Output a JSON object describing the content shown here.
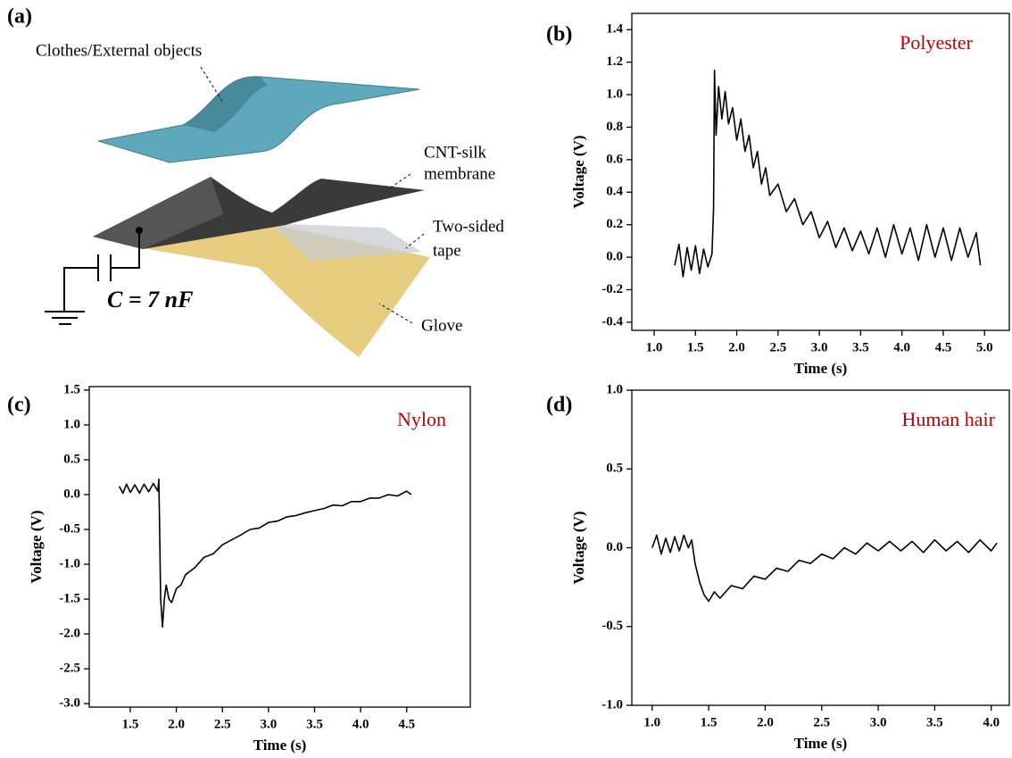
{
  "diagram": {
    "panel_label": "(a)",
    "labels": [
      "Clothes/External objects",
      "CNT-silk",
      "membrane",
      "Two-sided",
      "tape",
      "Glove",
      "C = 7 nF"
    ]
  },
  "chart_data": [
    {
      "type": "line",
      "panel_label": "(b)",
      "annotation": "Polyester",
      "xlabel": "Time (s)",
      "ylabel": "Voltage (V)",
      "color": "#000000",
      "x": [
        1.25,
        1.3,
        1.35,
        1.4,
        1.45,
        1.5,
        1.55,
        1.6,
        1.65,
        1.7,
        1.72,
        1.73,
        1.75,
        1.78,
        1.82,
        1.86,
        1.9,
        1.95,
        2.0,
        2.05,
        2.1,
        2.15,
        2.2,
        2.25,
        2.3,
        2.35,
        2.4,
        2.5,
        2.6,
        2.7,
        2.8,
        2.9,
        3.0,
        3.1,
        3.2,
        3.3,
        3.4,
        3.5,
        3.6,
        3.7,
        3.8,
        3.9,
        4.0,
        4.1,
        4.2,
        4.3,
        4.4,
        4.5,
        4.6,
        4.7,
        4.8,
        4.9,
        4.95
      ],
      "values": [
        -0.05,
        0.08,
        -0.12,
        0.06,
        -0.08,
        0.07,
        -0.1,
        0.05,
        -0.06,
        0.02,
        0.3,
        1.15,
        0.75,
        1.05,
        0.85,
        1.02,
        0.82,
        0.92,
        0.72,
        0.85,
        0.65,
        0.75,
        0.55,
        0.65,
        0.45,
        0.55,
        0.38,
        0.45,
        0.28,
        0.36,
        0.2,
        0.28,
        0.12,
        0.22,
        0.06,
        0.18,
        0.04,
        0.16,
        0.02,
        0.18,
        0.0,
        0.2,
        0.02,
        0.18,
        -0.02,
        0.2,
        0.0,
        0.18,
        -0.02,
        0.18,
        0.0,
        0.15,
        -0.05
      ],
      "xlim": [
        0.73,
        5.3
      ],
      "ylim": [
        -0.45,
        1.5
      ],
      "xticks": [
        {
          "value": 1.0,
          "label": "1.0"
        },
        1.5,
        {
          "value": 2.0,
          "label": "2.0"
        },
        2.5,
        {
          "value": 3.0,
          "label": "3.0"
        },
        3.5,
        {
          "value": 4.0,
          "label": "4.0"
        },
        4.5,
        {
          "value": 5.0,
          "label": "5.0"
        }
      ],
      "yticks": [
        -0.4,
        -0.2,
        {
          "value": 0.0,
          "label": "0.0"
        },
        0.2,
        0.4,
        0.6,
        0.8,
        {
          "value": 1.0,
          "label": "1.0"
        },
        1.2,
        1.4
      ]
    },
    {
      "type": "line",
      "panel_label": "(c)",
      "annotation": "Nylon",
      "xlabel": "Time (s)",
      "ylabel": "Voltage (V)",
      "color": "#000000",
      "x": [
        1.38,
        1.42,
        1.46,
        1.5,
        1.55,
        1.6,
        1.65,
        1.7,
        1.75,
        1.8,
        1.81,
        1.82,
        1.83,
        1.85,
        1.87,
        1.89,
        1.92,
        1.95,
        2.0,
        2.05,
        2.1,
        2.2,
        2.3,
        2.4,
        2.5,
        2.6,
        2.7,
        2.8,
        2.9,
        3.0,
        3.1,
        3.2,
        3.3,
        3.4,
        3.5,
        3.6,
        3.7,
        3.8,
        3.9,
        4.0,
        4.1,
        4.2,
        4.3,
        4.4,
        4.5,
        4.55
      ],
      "values": [
        0.12,
        0.02,
        0.15,
        0.03,
        0.14,
        0.02,
        0.15,
        0.04,
        0.16,
        0.05,
        0.22,
        -0.6,
        -1.5,
        -1.9,
        -1.5,
        -1.3,
        -1.5,
        -1.55,
        -1.35,
        -1.3,
        -1.15,
        -1.05,
        -0.9,
        -0.85,
        -0.72,
        -0.65,
        -0.58,
        -0.5,
        -0.48,
        -0.4,
        -0.38,
        -0.32,
        -0.3,
        -0.26,
        -0.23,
        -0.2,
        -0.15,
        -0.16,
        -0.1,
        -0.1,
        -0.05,
        -0.05,
        0.0,
        -0.02,
        0.05,
        0.0
      ],
      "xlim": [
        1.055,
        5.19
      ],
      "ylim": [
        -3.05,
        1.55
      ],
      "xticks": [
        1.5,
        {
          "value": 2.0,
          "label": "2.0"
        },
        2.5,
        {
          "value": 3.0,
          "label": "3.0"
        },
        3.5,
        {
          "value": 4.0,
          "label": "4.0"
        },
        4.5
      ],
      "yticks": [
        {
          "value": -3.0,
          "label": "-3.0"
        },
        -2.5,
        {
          "value": -2.0,
          "label": "-2.0"
        },
        -1.5,
        {
          "value": -1.0,
          "label": "-1.0"
        },
        -0.5,
        {
          "value": 0.0,
          "label": "0.0"
        },
        0.5,
        {
          "value": 1.0,
          "label": "1.0"
        },
        1.5
      ]
    },
    {
      "type": "line",
      "panel_label": "(d)",
      "annotation": "Human hair",
      "xlabel": "Time (s)",
      "ylabel": "Voltage (V)",
      "color": "#000000",
      "x": [
        1.0,
        1.04,
        1.08,
        1.12,
        1.16,
        1.2,
        1.24,
        1.28,
        1.32,
        1.35,
        1.38,
        1.42,
        1.46,
        1.5,
        1.55,
        1.6,
        1.7,
        1.8,
        1.9,
        2.0,
        2.1,
        2.2,
        2.3,
        2.4,
        2.5,
        2.6,
        2.7,
        2.8,
        2.9,
        3.0,
        3.1,
        3.2,
        3.3,
        3.4,
        3.5,
        3.6,
        3.7,
        3.8,
        3.9,
        4.0,
        4.05
      ],
      "values": [
        0.0,
        0.08,
        -0.04,
        0.06,
        -0.03,
        0.07,
        -0.02,
        0.08,
        0.0,
        0.05,
        -0.1,
        -0.22,
        -0.3,
        -0.34,
        -0.28,
        -0.32,
        -0.24,
        -0.26,
        -0.18,
        -0.2,
        -0.13,
        -0.15,
        -0.08,
        -0.1,
        -0.04,
        -0.07,
        0.0,
        -0.04,
        0.03,
        -0.02,
        0.04,
        -0.02,
        0.04,
        -0.03,
        0.05,
        -0.02,
        0.04,
        -0.03,
        0.05,
        -0.02,
        0.03
      ],
      "xlim": [
        0.82,
        4.16
      ],
      "ylim": [
        -1.0,
        1.0
      ],
      "xticks": [
        {
          "value": 1.0,
          "label": "1.0"
        },
        1.5,
        {
          "value": 2.0,
          "label": "2.0"
        },
        2.5,
        {
          "value": 3.0,
          "label": "3.0"
        },
        3.5,
        {
          "value": 4.0,
          "label": "4.0"
        }
      ],
      "yticks": [
        {
          "value": -1.0,
          "label": "-1.0"
        },
        -0.5,
        {
          "value": 0.0,
          "label": "0.0"
        },
        0.5,
        {
          "value": 1.0,
          "label": "1.0"
        }
      ]
    }
  ]
}
